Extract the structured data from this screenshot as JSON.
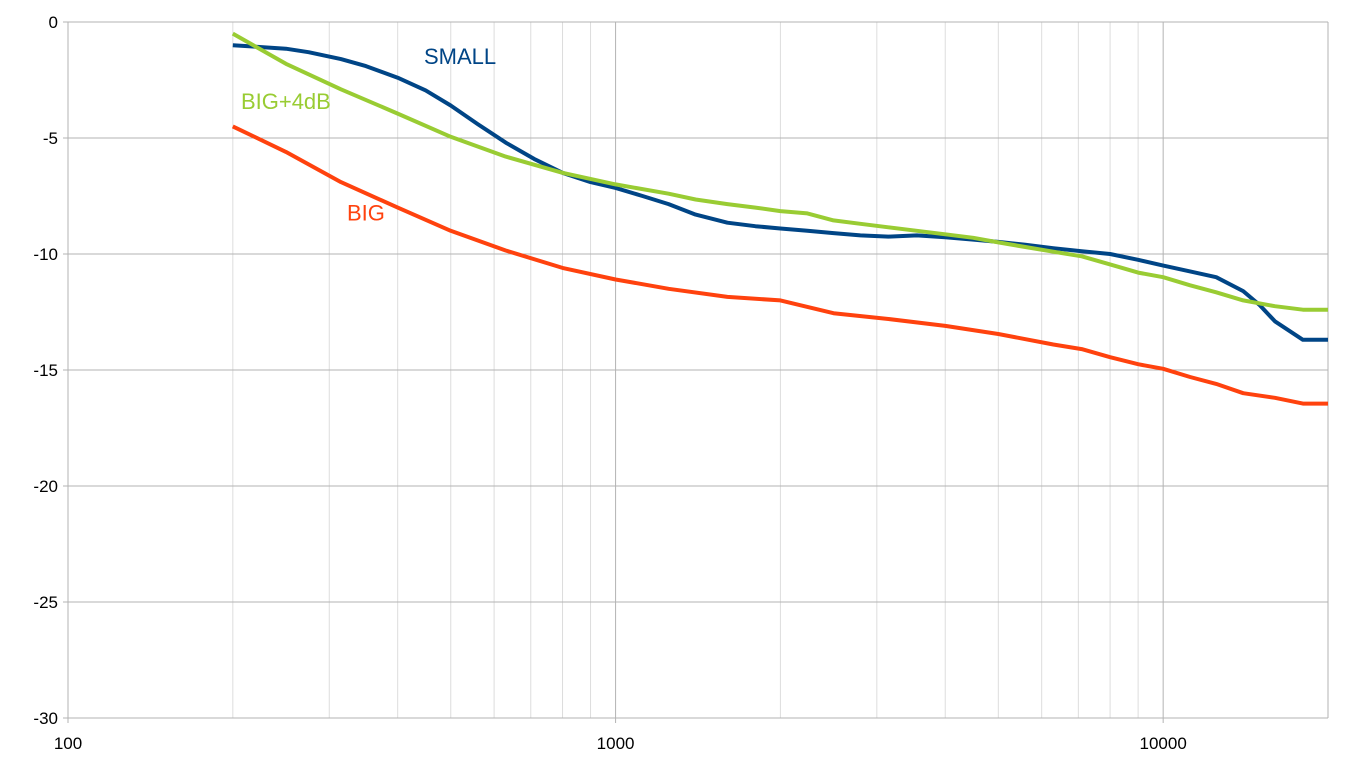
{
  "chart_data": {
    "type": "line",
    "title": "",
    "xlabel": "",
    "ylabel": "",
    "x_scale": "log",
    "xlim": [
      100,
      20000
    ],
    "ylim": [
      -30,
      0
    ],
    "grid": true,
    "x_ticks": [
      {
        "value": 100,
        "label": "100"
      },
      {
        "value": 1000,
        "label": "1000"
      },
      {
        "value": 10000,
        "label": "10000"
      }
    ],
    "y_ticks": [
      {
        "value": 0,
        "label": "0"
      },
      {
        "value": -5,
        "label": "-5"
      },
      {
        "value": -10,
        "label": "-10"
      },
      {
        "value": -15,
        "label": "-15"
      },
      {
        "value": -20,
        "label": "-20"
      },
      {
        "value": -25,
        "label": "-25"
      },
      {
        "value": -30,
        "label": "-30"
      }
    ],
    "x": [
      200,
      250,
      315,
      400,
      500,
      630,
      800,
      1000,
      1250,
      1600,
      2000,
      2500,
      3150,
      4000,
      5000,
      6300,
      8000,
      10000,
      12500,
      16000,
      20000
    ],
    "series": [
      {
        "name": "SMALL",
        "color": "#004586",
        "x": [
          200,
          250,
          275,
          315,
          350,
          400,
          450,
          500,
          560,
          630,
          710,
          800,
          900,
          1000,
          1120,
          1250,
          1400,
          1600,
          1800,
          2000,
          2240,
          2500,
          2800,
          3150,
          3550,
          4000,
          4500,
          5000,
          5600,
          6300,
          7100,
          8000,
          9000,
          10000,
          11200,
          12500,
          14000,
          15000,
          16000,
          18000,
          20000
        ],
        "values": [
          -1.0,
          -1.15,
          -1.3,
          -1.6,
          -1.9,
          -2.4,
          -2.95,
          -3.6,
          -4.4,
          -5.2,
          -5.9,
          -6.5,
          -6.9,
          -7.15,
          -7.5,
          -7.85,
          -8.3,
          -8.65,
          -8.8,
          -8.9,
          -9.0,
          -9.1,
          -9.2,
          -9.25,
          -9.2,
          -9.28,
          -9.38,
          -9.48,
          -9.6,
          -9.75,
          -9.88,
          -10.0,
          -10.25,
          -10.5,
          -10.75,
          -11.0,
          -11.6,
          -12.2,
          -12.9,
          -13.7,
          -13.7
        ]
      },
      {
        "name": "BIG+4dB",
        "color": "#99cc33",
        "x": [
          200,
          250,
          315,
          400,
          500,
          630,
          800,
          1000,
          1250,
          1400,
          1600,
          1800,
          2000,
          2240,
          2500,
          2800,
          3150,
          3550,
          4000,
          4500,
          5000,
          5600,
          6300,
          7100,
          8000,
          9000,
          10000,
          11200,
          12500,
          14000,
          16000,
          18000,
          20000
        ],
        "values": [
          -0.5,
          -1.8,
          -2.9,
          -3.95,
          -4.95,
          -5.8,
          -6.5,
          -7.0,
          -7.4,
          -7.65,
          -7.85,
          -8.0,
          -8.15,
          -8.25,
          -8.55,
          -8.7,
          -8.85,
          -9.0,
          -9.15,
          -9.3,
          -9.5,
          -9.7,
          -9.9,
          -10.1,
          -10.45,
          -10.8,
          -11.0,
          -11.35,
          -11.65,
          -12.0,
          -12.25,
          -12.4,
          -12.4
        ]
      },
      {
        "name": "BIG",
        "color": "#ff420e",
        "x": [
          200,
          250,
          315,
          400,
          500,
          630,
          800,
          1000,
          1250,
          1600,
          2000,
          2500,
          3150,
          4000,
          5000,
          6300,
          7100,
          8000,
          9000,
          10000,
          11200,
          12500,
          14000,
          16000,
          18000,
          20000
        ],
        "values": [
          -4.5,
          -5.6,
          -6.9,
          -8.0,
          -9.0,
          -9.85,
          -10.6,
          -11.1,
          -11.5,
          -11.85,
          -12.0,
          -12.55,
          -12.8,
          -13.1,
          -13.45,
          -13.9,
          -14.1,
          -14.45,
          -14.75,
          -14.95,
          -15.3,
          -15.6,
          -16.0,
          -16.2,
          -16.45,
          -16.45
        ]
      }
    ],
    "annotations": [
      {
        "text": "SMALL",
        "series": "SMALL",
        "x": 520,
        "y": -1.8
      },
      {
        "text": "BIG+4dB",
        "series": "BIG+4dB",
        "x": 250,
        "y": -3.75
      },
      {
        "text": "BIG",
        "series": "BIG",
        "x": 350,
        "y": -8.55
      }
    ]
  }
}
